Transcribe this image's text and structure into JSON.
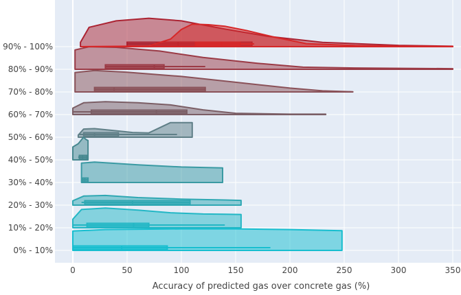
{
  "chart_data": {
    "type": "violin",
    "orientation": "horizontal",
    "side": "positive",
    "xlabel": "Accuracy of predicted gas over concrete gas (%)",
    "ylabel": "",
    "xlim": [
      -18,
      350
    ],
    "x_ticks": [
      0,
      50,
      100,
      150,
      200,
      250,
      300,
      350
    ],
    "grid": true,
    "legend": "none",
    "background_color": "#e5ecf6",
    "categories": [
      "0% - 10%",
      "10% - 20%",
      "20% - 30%",
      "30% - 40%",
      "40% - 50%",
      "50% - 60%",
      "60% - 70%",
      "70% - 80%",
      "80% - 90%",
      "90% - 100%"
    ],
    "series": [
      {
        "category": "0% - 10%",
        "color": "#17becf",
        "profile": [
          [
            0,
            0.9
          ],
          [
            30,
            0.97
          ],
          [
            100,
            1.0
          ],
          [
            150,
            1.0
          ],
          [
            200,
            0.97
          ],
          [
            248,
            0.92
          ]
        ],
        "box": {
          "min": 0,
          "q1": 0,
          "median": 45,
          "q3": 87,
          "max": 182
        }
      },
      {
        "category": "10% - 20%",
        "color": "#23b7c5",
        "profile": [
          [
            0,
            0.4
          ],
          [
            8,
            0.85
          ],
          [
            30,
            0.92
          ],
          [
            60,
            0.82
          ],
          [
            90,
            0.7
          ],
          [
            120,
            0.64
          ],
          [
            140,
            0.63
          ],
          [
            155,
            0.62
          ]
        ],
        "box": {
          "min": 0,
          "q1": 13,
          "median": 56,
          "q3": 70,
          "max": 140
        }
      },
      {
        "category": "20% - 30%",
        "color": "#2fa8b3",
        "profile": [
          [
            0,
            0.2
          ],
          [
            10,
            0.42
          ],
          [
            30,
            0.45
          ],
          [
            60,
            0.35
          ],
          [
            100,
            0.28
          ],
          [
            140,
            0.24
          ],
          [
            155,
            0.22
          ]
        ],
        "box": {
          "min": 8,
          "q1": 11,
          "median": 55,
          "q3": 108,
          "max": 108
        }
      },
      {
        "category": "30% - 40%",
        "color": "#3a9aa3",
        "profile": [
          [
            8,
            0.9
          ],
          [
            20,
            0.95
          ],
          [
            60,
            0.82
          ],
          [
            100,
            0.72
          ],
          [
            138,
            0.68
          ]
        ],
        "box": {
          "min": 8,
          "q1": 9,
          "median": 11,
          "q3": 14,
          "max": 14
        }
      },
      {
        "category": "40% - 50%",
        "color": "#46888f",
        "profile": [
          [
            0,
            0.6
          ],
          [
            5,
            0.75
          ],
          [
            9,
            1.0
          ],
          [
            10,
            1.05
          ],
          [
            12,
            0.95
          ],
          [
            14,
            0.9
          ]
        ],
        "box": {
          "min": 5,
          "q1": 6,
          "median": 9,
          "q3": 13,
          "max": 13
        }
      },
      {
        "category": "50% - 60%",
        "color": "#5f7f87",
        "profile": [
          [
            5,
            0.1
          ],
          [
            10,
            0.38
          ],
          [
            20,
            0.4
          ],
          [
            40,
            0.3
          ],
          [
            55,
            0.22
          ],
          [
            70,
            0.2
          ],
          [
            90,
            0.68
          ],
          [
            110,
            0.68
          ]
        ],
        "box": {
          "min": 5,
          "q1": 10,
          "median": 20,
          "q3": 42,
          "max": 96
        }
      },
      {
        "category": "60% - 70%",
        "color": "#7b5e65",
        "profile": [
          [
            0,
            0.3
          ],
          [
            10,
            0.55
          ],
          [
            30,
            0.6
          ],
          [
            60,
            0.55
          ],
          [
            90,
            0.45
          ],
          [
            120,
            0.22
          ],
          [
            150,
            0.06
          ],
          [
            200,
            0.02
          ],
          [
            233,
            0.02
          ]
        ],
        "box": {
          "min": 0,
          "q1": 17,
          "median": 77,
          "q3": 105,
          "max": 105
        }
      },
      {
        "category": "70% - 80%",
        "color": "#8a5158",
        "profile": [
          [
            2,
            0.9
          ],
          [
            20,
            1.0
          ],
          [
            50,
            0.92
          ],
          [
            100,
            0.72
          ],
          [
            150,
            0.45
          ],
          [
            200,
            0.18
          ],
          [
            230,
            0.05
          ],
          [
            258,
            0.01
          ]
        ],
        "box": {
          "min": 20,
          "q1": 20,
          "median": 38,
          "q3": 122,
          "max": 122
        }
      },
      {
        "category": "80% - 90%",
        "color": "#9b3a45",
        "profile": [
          [
            2,
            0.9
          ],
          [
            15,
            1.05
          ],
          [
            40,
            1.02
          ],
          [
            80,
            0.85
          ],
          [
            120,
            0.55
          ],
          [
            170,
            0.28
          ],
          [
            212,
            0.1
          ],
          [
            260,
            0.06
          ],
          [
            350,
            0.03
          ]
        ],
        "box": {
          "min": 30,
          "q1": 30,
          "median": 75,
          "q3": 84,
          "max": 122
        }
      },
      {
        "category": "90% - 100%",
        "color": "#ab2332",
        "profile": [
          [
            7,
            0.2
          ],
          [
            15,
            0.9
          ],
          [
            40,
            1.2
          ],
          [
            70,
            1.32
          ],
          [
            100,
            1.2
          ],
          [
            140,
            0.82
          ],
          [
            180,
            0.48
          ],
          [
            230,
            0.2
          ],
          [
            300,
            0.06
          ],
          [
            350,
            0.02
          ]
        ],
        "box": {
          "min": 50,
          "q1": 50,
          "median": 97,
          "q3": 165,
          "max": 165
        }
      }
    ],
    "top_violin": {
      "category": "90% - 100%",
      "color": "#d62728",
      "profile": [
        [
          8,
          0.0
        ],
        [
          70,
          0.03
        ],
        [
          90,
          0.35
        ],
        [
          100,
          0.8
        ],
        [
          110,
          1.05
        ],
        [
          125,
          1.02
        ],
        [
          140,
          0.95
        ],
        [
          160,
          0.75
        ],
        [
          185,
          0.45
        ],
        [
          215,
          0.14
        ],
        [
          260,
          0.05
        ],
        [
          300,
          0.02
        ],
        [
          350,
          0.01
        ]
      ],
      "box": {
        "min": 113,
        "q1": 113,
        "median": 137,
        "q3": 154,
        "max": 167
      }
    }
  }
}
